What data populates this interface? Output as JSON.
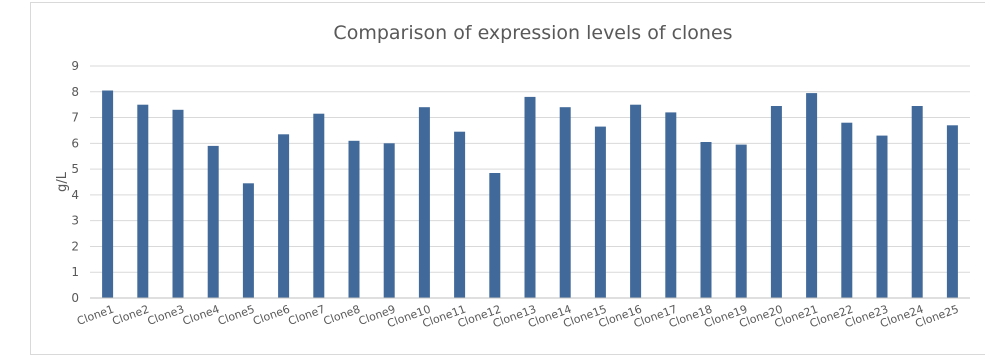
{
  "chart_data": {
    "type": "bar",
    "title": "Comparison of expression levels of clones",
    "xlabel": "",
    "ylabel": "g/L",
    "ylim": [
      0,
      9
    ],
    "yticks": [
      "0",
      "1",
      "2",
      "3",
      "4",
      "5",
      "6",
      "7",
      "8",
      "9"
    ],
    "grid": true,
    "legend": "none",
    "bar_color": "#41699a",
    "categories": [
      "Clone1",
      "Clone2",
      "Clone3",
      "Clone4",
      "Clone5",
      "Clone6",
      "Clone7",
      "Clone8",
      "Clone9",
      "Clone10",
      "Clone11",
      "Clone12",
      "Clone13",
      "Clone14",
      "Clone15",
      "Clone16",
      "Clone17",
      "Clone18",
      "Clone19",
      "Clone20",
      "Clone21",
      "Clone22",
      "Clone23",
      "Clone24",
      "Clone25"
    ],
    "values": [
      8.05,
      7.5,
      7.3,
      5.9,
      4.45,
      6.35,
      7.15,
      6.1,
      6.0,
      7.4,
      6.45,
      4.85,
      7.8,
      7.4,
      6.65,
      7.5,
      7.2,
      6.05,
      5.95,
      7.45,
      7.95,
      6.8,
      6.3,
      7.45,
      6.7
    ]
  }
}
